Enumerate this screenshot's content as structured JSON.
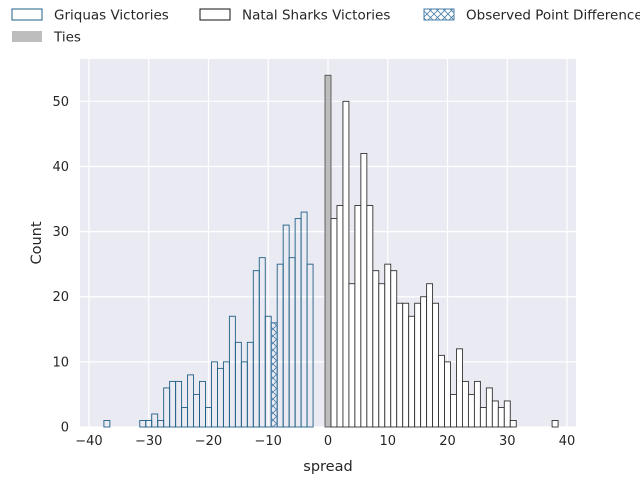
{
  "chart_data": {
    "type": "bar",
    "chart_kind": "histogram",
    "title": "",
    "xlabel": "spread",
    "ylabel": "Count",
    "xlim": [
      -41.5,
      41.5
    ],
    "ylim": [
      0,
      56.5
    ],
    "xticks": [
      -40,
      -30,
      -20,
      -10,
      0,
      10,
      20,
      30,
      40
    ],
    "yticks": [
      0,
      10,
      20,
      30,
      40,
      50
    ],
    "xtick_labels": [
      "−40",
      "−30",
      "−20",
      "−10",
      "0",
      "10",
      "20",
      "30",
      "40"
    ],
    "ytick_labels": [
      "0",
      "10",
      "20",
      "30",
      "40",
      "50"
    ],
    "grid": true,
    "background": "#eaeaf2",
    "bin_width": 1,
    "legend": {
      "placement": "top",
      "entries": [
        {
          "label": "Griquas Victories",
          "marker": "outline-blue"
        },
        {
          "label": "Natal Sharks Victories",
          "marker": "outline-black"
        },
        {
          "label": "Observed Point Difference",
          "marker": "hatched"
        },
        {
          "label": "Ties",
          "marker": "filled-gray"
        }
      ]
    },
    "colors": {
      "griquas": "#1f5f86",
      "sharks": "#333333",
      "ties": "#bdbdbd",
      "observed": "#4a7fa7"
    },
    "series": [
      {
        "name": "Griquas Victories",
        "x": [
          -37,
          -31,
          -30,
          -29,
          -28,
          -27,
          -26,
          -25,
          -24,
          -23,
          -22,
          -21,
          -20,
          -19,
          -18,
          -17,
          -16,
          -15,
          -14,
          -13,
          -12,
          -11,
          -10,
          -9,
          -8,
          -7,
          -6,
          -5,
          -4,
          -3,
          -2,
          -1
        ],
        "values": [
          1,
          1,
          1,
          2,
          1,
          6,
          7,
          7,
          3,
          8,
          5,
          7,
          3,
          10,
          9,
          10,
          17,
          13,
          10,
          13,
          24,
          26,
          17,
          16,
          25,
          31,
          26,
          32,
          33,
          25,
          0,
          0
        ]
      },
      {
        "name": "Ties",
        "x": [
          0
        ],
        "values": [
          54
        ]
      },
      {
        "name": "Natal Sharks Victories",
        "x": [
          1,
          2,
          3,
          4,
          5,
          6,
          7,
          8,
          9,
          10,
          11,
          12,
          13,
          14,
          15,
          16,
          17,
          18,
          19,
          20,
          21,
          22,
          23,
          24,
          25,
          26,
          27,
          28,
          29,
          30,
          31,
          38
        ],
        "values": [
          32,
          34,
          50,
          22,
          34,
          42,
          34,
          24,
          22,
          25,
          24,
          19,
          19,
          17,
          19,
          20,
          22,
          19,
          11,
          10,
          5,
          12,
          7,
          5,
          7,
          3,
          6,
          4,
          3,
          4,
          1,
          1
        ]
      }
    ],
    "observed_point_difference": -9
  }
}
